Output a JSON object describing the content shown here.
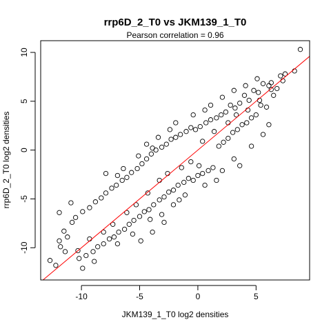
{
  "chart_data": {
    "type": "scatter",
    "title": "rrp6D_2_T0 vs JKM139_1_T0",
    "subtitle": "Pearson correlation =  0.96",
    "xlabel": "JKM139_1_T0 log2 densities",
    "ylabel": "rrp6D_2_T0 log2 densities",
    "xlim": [
      -13.5,
      9.6
    ],
    "ylim": [
      -13.3,
      11.2
    ],
    "x_ticks": [
      -10,
      -5,
      0,
      5
    ],
    "x_tick_labels": [
      "-10",
      "-5",
      "0",
      "5"
    ],
    "y_ticks": [
      -10,
      -5,
      0,
      5,
      10
    ],
    "y_tick_labels": [
      "-10",
      "-5",
      "0",
      "5",
      "10"
    ],
    "grid": false,
    "legend": "none",
    "fit_line": {
      "slope": 1.0,
      "intercept": 0.0,
      "color": "#ff0000"
    },
    "point_color": "#000000",
    "points": [
      [
        8.8,
        10.3
      ],
      [
        8.3,
        8.1
      ],
      [
        7.5,
        7.8
      ],
      [
        7.1,
        7.6
      ],
      [
        6.8,
        6.3
      ],
      [
        6.5,
        5.6
      ],
      [
        6.3,
        6.2
      ],
      [
        6.1,
        6.6
      ],
      [
        5.9,
        4.4
      ],
      [
        5.6,
        6.8
      ],
      [
        5.4,
        4.6
      ],
      [
        5.2,
        5.9
      ],
      [
        5.0,
        3.6
      ],
      [
        4.8,
        6.1
      ],
      [
        4.6,
        3.3
      ],
      [
        4.4,
        5.1
      ],
      [
        4.2,
        2.8
      ],
      [
        4.0,
        5.6
      ],
      [
        3.8,
        2.6
      ],
      [
        3.6,
        4.8
      ],
      [
        3.4,
        2.1
      ],
      [
        3.2,
        4.3
      ],
      [
        3.0,
        1.8
      ],
      [
        2.8,
        4.6
      ],
      [
        2.6,
        1.2
      ],
      [
        2.4,
        3.9
      ],
      [
        2.2,
        0.8
      ],
      [
        2.0,
        3.6
      ],
      [
        1.8,
        0.4
      ],
      [
        1.6,
        3.3
      ],
      [
        1.3,
        -1.8
      ],
      [
        1.1,
        3.1
      ],
      [
        0.9,
        -2.1
      ],
      [
        0.7,
        2.8
      ],
      [
        0.4,
        -2.4
      ],
      [
        0.2,
        2.4
      ],
      [
        0.0,
        -2.6
      ],
      [
        -0.2,
        2.1
      ],
      [
        -0.4,
        -3.1
      ],
      [
        -0.6,
        2.3
      ],
      [
        -0.8,
        -2.9
      ],
      [
        -1.0,
        1.9
      ],
      [
        -1.2,
        -3.3
      ],
      [
        -1.5,
        1.6
      ],
      [
        -1.7,
        -3.6
      ],
      [
        -1.9,
        1.3
      ],
      [
        -2.1,
        -4.1
      ],
      [
        -2.3,
        1.1
      ],
      [
        -2.5,
        -4.3
      ],
      [
        -2.7,
        0.6
      ],
      [
        -2.9,
        -4.8
      ],
      [
        -3.1,
        0.3
      ],
      [
        -3.3,
        -5.1
      ],
      [
        -3.6,
        0.0
      ],
      [
        -3.8,
        -5.6
      ],
      [
        -4.0,
        -0.4
      ],
      [
        -4.2,
        -6.1
      ],
      [
        -4.4,
        -0.9
      ],
      [
        -4.6,
        -6.3
      ],
      [
        -4.8,
        -1.4
      ],
      [
        -5.0,
        -6.8
      ],
      [
        -5.2,
        -1.9
      ],
      [
        -5.5,
        -7.2
      ],
      [
        -5.7,
        -2.3
      ],
      [
        -5.9,
        -7.6
      ],
      [
        -6.1,
        -2.8
      ],
      [
        -6.3,
        -8.1
      ],
      [
        -6.5,
        -3.1
      ],
      [
        -6.8,
        -8.4
      ],
      [
        -7.0,
        -3.6
      ],
      [
        -7.2,
        -8.9
      ],
      [
        -7.4,
        -3.9
      ],
      [
        -7.6,
        -9.1
      ],
      [
        -7.9,
        -4.4
      ],
      [
        -8.1,
        -9.6
      ],
      [
        -8.3,
        -4.9
      ],
      [
        -8.6,
        -9.9
      ],
      [
        -8.8,
        -5.3
      ],
      [
        -9.0,
        -10.4
      ],
      [
        -9.3,
        -5.9
      ],
      [
        -9.6,
        -10.8
      ],
      [
        -9.9,
        -6.3
      ],
      [
        -10.2,
        -11.1
      ],
      [
        -10.5,
        -6.9
      ],
      [
        -10.8,
        -7.4
      ],
      [
        -11.2,
        -8.9
      ],
      [
        -11.5,
        -8.3
      ],
      [
        -11.9,
        -9.3
      ],
      [
        -12.2,
        -11.8
      ],
      [
        -12.7,
        -11.3
      ],
      [
        -11.9,
        -6.4
      ],
      [
        -11.4,
        -10.4
      ],
      [
        -10.9,
        -5.4
      ],
      [
        -11.8,
        -9.9
      ],
      [
        -7.9,
        -2.4
      ],
      [
        -6.9,
        -2.6
      ],
      [
        -6.4,
        -1.9
      ],
      [
        -5.1,
        -0.6
      ],
      [
        -4.4,
        0.6
      ],
      [
        -3.9,
        0.2
      ],
      [
        -3.4,
        1.3
      ],
      [
        -2.4,
        2.1
      ],
      [
        -1.9,
        2.8
      ],
      [
        -0.4,
        3.6
      ],
      [
        0.6,
        4.1
      ],
      [
        1.1,
        4.6
      ],
      [
        2.1,
        5.4
      ],
      [
        3.1,
        6.1
      ],
      [
        4.1,
        6.6
      ],
      [
        5.1,
        7.3
      ],
      [
        0.6,
        -3.6
      ],
      [
        1.6,
        -3.1
      ],
      [
        2.1,
        -2.1
      ],
      [
        3.1,
        -0.9
      ],
      [
        3.6,
        -1.6
      ],
      [
        4.6,
        0.4
      ],
      [
        5.6,
        1.6
      ],
      [
        6.1,
        2.6
      ],
      [
        -5.6,
        -8.6
      ],
      [
        -4.1,
        -7.1
      ],
      [
        -3.1,
        -6.6
      ],
      [
        -2.1,
        -5.6
      ],
      [
        -1.1,
        -4.6
      ],
      [
        -6.9,
        -9.6
      ],
      [
        -8.9,
        -11.4
      ],
      [
        -9.9,
        -12.1
      ],
      [
        -2.9,
        -7.4
      ],
      [
        -3.9,
        -8.4
      ],
      [
        -4.9,
        -9.3
      ],
      [
        -1.6,
        -5.1
      ],
      [
        0.1,
        -1.6
      ],
      [
        -0.6,
        -1.2
      ],
      [
        0.4,
        0.9
      ],
      [
        1.4,
        1.9
      ],
      [
        -1.4,
        -1.8
      ],
      [
        2.6,
        2.8
      ],
      [
        -2.6,
        -2.4
      ],
      [
        3.3,
        3.6
      ],
      [
        -3.3,
        -3.1
      ],
      [
        4.3,
        4.1
      ],
      [
        -4.3,
        -4.4
      ],
      [
        5.3,
        5.1
      ],
      [
        -5.3,
        -5.6
      ],
      [
        6.3,
        6.9
      ],
      [
        -6.1,
        -6.4
      ],
      [
        7.3,
        7.1
      ],
      [
        -7.3,
        -7.6
      ],
      [
        -8.1,
        -8.4
      ],
      [
        -9.3,
        -9.1
      ],
      [
        -10.3,
        -10.3
      ]
    ]
  }
}
